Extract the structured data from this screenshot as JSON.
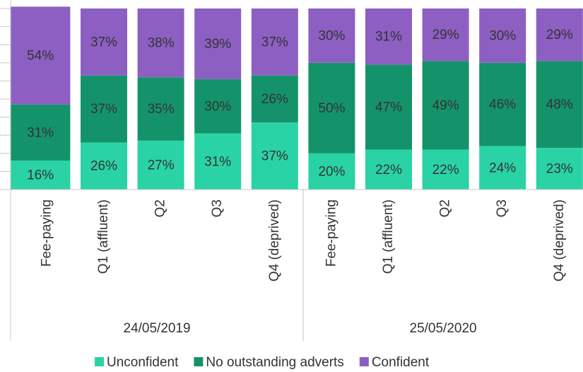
{
  "chart_data": {
    "type": "stacked_bar",
    "groups": [
      {
        "name": "24/05/2019",
        "categories": [
          "Fee-paying",
          "Q1 (affluent)",
          "Q2",
          "Q3",
          "Q4 (deprived)"
        ]
      },
      {
        "name": "25/05/2020",
        "categories": [
          "Fee-paying",
          "Q1 (affluent)",
          "Q2",
          "Q3",
          "Q4 (deprived)"
        ]
      }
    ],
    "series": [
      {
        "name": "Unconfident",
        "color": "#2ad3a5",
        "values": [
          16,
          26,
          27,
          31,
          37,
          20,
          22,
          22,
          24,
          23
        ],
        "value_labels": [
          "16%",
          "26%",
          "27%",
          "31%",
          "37%",
          "20%",
          "22%",
          "22%",
          "24%",
          "23%"
        ]
      },
      {
        "name": "No outstanding adverts",
        "color": "#14936a",
        "values": [
          31,
          37,
          35,
          30,
          26,
          50,
          47,
          49,
          46,
          48
        ],
        "value_labels": [
          "31%",
          "37%",
          "35%",
          "30%",
          "26%",
          "50%",
          "47%",
          "49%",
          "46%",
          "48%"
        ]
      },
      {
        "name": "Confident",
        "color": "#8d5fc3",
        "values": [
          54,
          37,
          38,
          39,
          37,
          30,
          31,
          29,
          30,
          29
        ],
        "value_labels": [
          "54%",
          "37%",
          "38%",
          "39%",
          "37%",
          "30%",
          "31%",
          "29%",
          "30%",
          "29%"
        ]
      }
    ],
    "ylim": [
      0,
      100
    ],
    "yticks": [
      0,
      10,
      20,
      30,
      40,
      50,
      60,
      70,
      80,
      90,
      100
    ],
    "legend": "bottom"
  }
}
